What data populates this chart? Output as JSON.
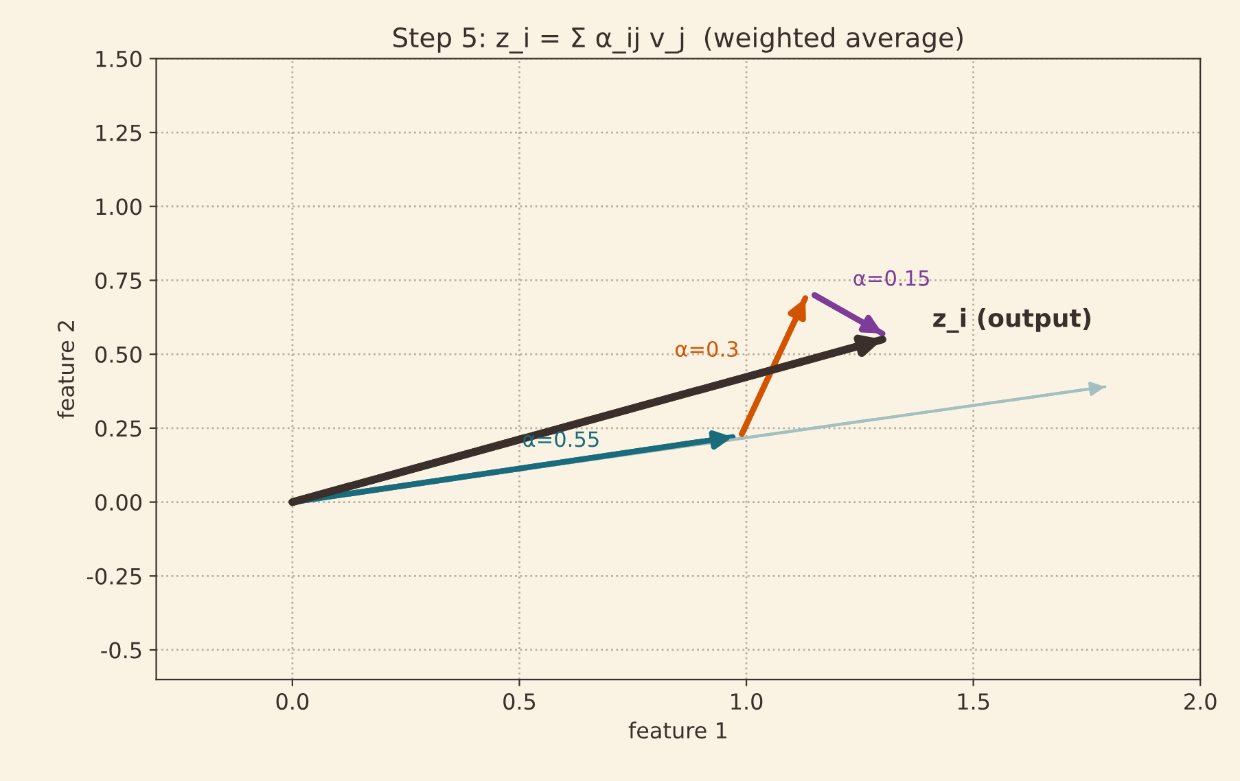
{
  "chart_data": {
    "type": "line",
    "title": "Step 5: z_i = Σ α_ij v_j  (weighted average)",
    "xlabel": "feature 1",
    "ylabel": "feature 2",
    "series": [
      {
        "color": "#a3bfbf",
        "x": [
          0,
          1.79
        ],
        "values": [
          0,
          0.39
        ]
      },
      {
        "color": "#1a6b7c",
        "x": [
          0,
          0.97
        ],
        "values": [
          0,
          0.22
        ]
      },
      {
        "color": "#d35400",
        "x": [
          0.99,
          1.13
        ],
        "values": [
          0.23,
          0.69
        ]
      },
      {
        "color": "#7d3c98",
        "x": [
          1.15,
          1.3
        ],
        "values": [
          0.7,
          0.57
        ]
      },
      {
        "color": "#3a2f2a",
        "x": [
          0,
          1.3
        ],
        "values": [
          0,
          0.55
        ]
      }
    ],
    "annotations": [
      "α=0.55",
      "α=0.3",
      "α=0.15",
      "z_i (output)"
    ],
    "xlim": [
      -0.3,
      2.0
    ],
    "ylim": [
      -0.6,
      1.5
    ],
    "xticks": [
      {
        "value": 0,
        "label": "0.0"
      },
      0.5,
      {
        "value": 1,
        "label": "1.0"
      },
      1.5,
      {
        "value": 2,
        "label": "2.0"
      }
    ],
    "yticks": [
      -0.5,
      -0.25,
      {
        "value": 0,
        "label": "0.00"
      },
      0.25,
      {
        "value": 0.5,
        "label": "0.50"
      },
      0.75,
      {
        "value": 1,
        "label": "1.00"
      },
      1.25,
      {
        "value": 1.5,
        "label": "1.50"
      }
    ],
    "grid": true,
    "marker": "none",
    "line_style": "solid"
  }
}
